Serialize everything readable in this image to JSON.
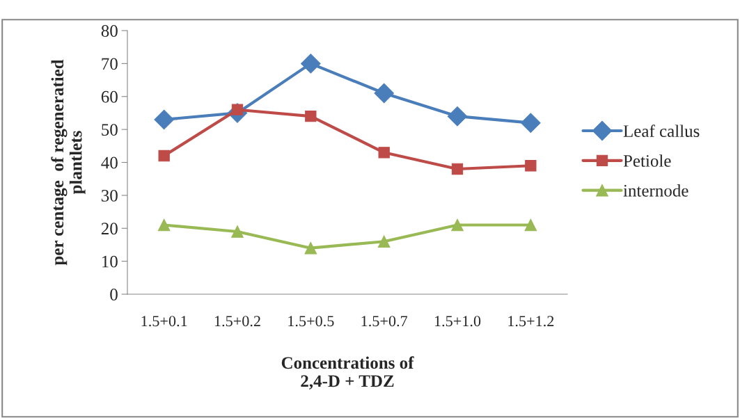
{
  "chart_data": {
    "type": "line",
    "xlabel": "Concentrations of\n2,4-D + TDZ",
    "ylabel": "per centage  of regeneratied\nplantlets",
    "categories": [
      "1.5+0.1",
      "1.5+0.2",
      "1.5+0.5",
      "1.5+0.7",
      "1.5+1.0",
      "1.5+1.2"
    ],
    "series": [
      {
        "name": "Leaf callus",
        "color": "#4a7ebb",
        "marker": "diamond",
        "values": [
          53,
          55,
          70,
          61,
          54,
          52
        ]
      },
      {
        "name": "Petiole",
        "color": "#be4b48",
        "marker": "square",
        "values": [
          42,
          56,
          54,
          43,
          38,
          39
        ]
      },
      {
        "name": "internode",
        "color": "#98b954",
        "marker": "triangle",
        "values": [
          21,
          19,
          14,
          16,
          21,
          21
        ]
      }
    ],
    "ylim": [
      0,
      80
    ],
    "yticks": [
      0,
      10,
      20,
      30,
      40,
      50,
      60,
      70,
      80
    ],
    "grid": false,
    "legend": "right",
    "line_style": "solid"
  }
}
